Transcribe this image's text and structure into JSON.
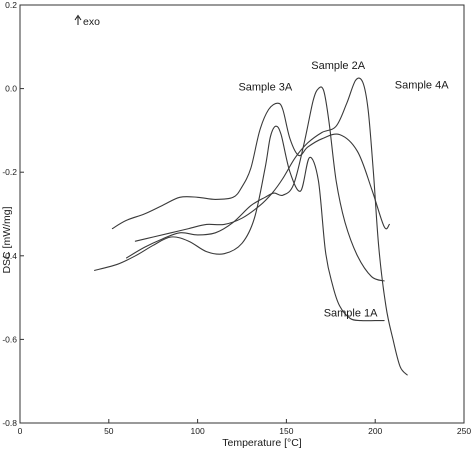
{
  "chart_data": {
    "type": "line",
    "title": "",
    "xlabel": "Temperature [°C]",
    "ylabel": "DSC [mW/mg]",
    "annotation": "exo",
    "xlim": [
      0,
      250
    ],
    "ylim": [
      -0.8,
      0.2
    ],
    "xticks": [
      0,
      50,
      100,
      150,
      200,
      250
    ],
    "yticks": [
      -0.8,
      -0.6,
      -0.4,
      -0.2,
      0.0,
      0.2
    ],
    "xtick_labels": [
      "0",
      "50",
      "100",
      "150",
      "200",
      "250"
    ],
    "ytick_labels": [
      "-0.8",
      "-0.6",
      "-0.4",
      "-0.2",
      "0.0",
      "0.2"
    ],
    "grid": false,
    "legend": "none",
    "series": [
      {
        "name": "Sample 1A",
        "x": [
          42,
          55,
          65,
          75,
          85,
          95,
          105,
          115,
          125,
          132,
          138,
          141,
          144,
          147,
          152,
          158,
          163,
          168,
          172,
          176,
          180,
          186,
          192,
          200,
          205
        ],
        "y": [
          -0.435,
          -0.42,
          -0.4,
          -0.375,
          -0.355,
          -0.365,
          -0.39,
          -0.395,
          -0.37,
          -0.31,
          -0.19,
          -0.115,
          -0.09,
          -0.11,
          -0.2,
          -0.245,
          -0.165,
          -0.22,
          -0.39,
          -0.47,
          -0.52,
          -0.55,
          -0.555,
          -0.555,
          -0.555
        ]
      },
      {
        "name": "Sample 2A",
        "x": [
          60,
          70,
          80,
          90,
          100,
          110,
          120,
          130,
          138,
          143,
          148,
          154,
          160,
          165,
          168,
          171,
          174,
          178,
          183,
          190,
          198,
          205
        ],
        "y": [
          -0.405,
          -0.38,
          -0.36,
          -0.345,
          -0.35,
          -0.345,
          -0.32,
          -0.28,
          -0.26,
          -0.25,
          -0.255,
          -0.23,
          -0.13,
          -0.03,
          0.0,
          -0.005,
          -0.08,
          -0.22,
          -0.32,
          -0.4,
          -0.45,
          -0.46
        ]
      },
      {
        "name": "Sample 3A",
        "x": [
          52,
          60,
          70,
          80,
          90,
          100,
          110,
          120,
          125,
          130,
          135,
          140,
          145,
          148,
          152,
          157,
          162,
          170,
          180,
          190,
          198,
          205,
          208
        ],
        "y": [
          -0.335,
          -0.315,
          -0.3,
          -0.28,
          -0.26,
          -0.26,
          -0.265,
          -0.26,
          -0.235,
          -0.19,
          -0.1,
          -0.05,
          -0.035,
          -0.05,
          -0.12,
          -0.16,
          -0.14,
          -0.12,
          -0.11,
          -0.15,
          -0.24,
          -0.33,
          -0.325
        ]
      },
      {
        "name": "Sample 4A",
        "x": [
          65,
          75,
          85,
          95,
          105,
          115,
          125,
          135,
          142,
          148,
          155,
          162,
          170,
          178,
          184,
          189,
          193,
          196,
          199,
          202,
          206,
          210,
          214,
          218
        ],
        "y": [
          -0.365,
          -0.355,
          -0.345,
          -0.335,
          -0.325,
          -0.325,
          -0.31,
          -0.28,
          -0.25,
          -0.215,
          -0.165,
          -0.13,
          -0.105,
          -0.09,
          -0.035,
          0.02,
          0.015,
          -0.05,
          -0.2,
          -0.38,
          -0.52,
          -0.6,
          -0.665,
          -0.685
        ]
      }
    ],
    "series_labels": [
      {
        "text": "Sample 3A",
        "x": 123,
        "y": -0.005
      },
      {
        "text": "Sample 2A",
        "x": 164,
        "y": 0.047
      },
      {
        "text": "Sample 4A",
        "x": 211,
        "y": 0.0
      },
      {
        "text": "Sample 1A",
        "x": 171,
        "y": -0.545
      }
    ]
  }
}
